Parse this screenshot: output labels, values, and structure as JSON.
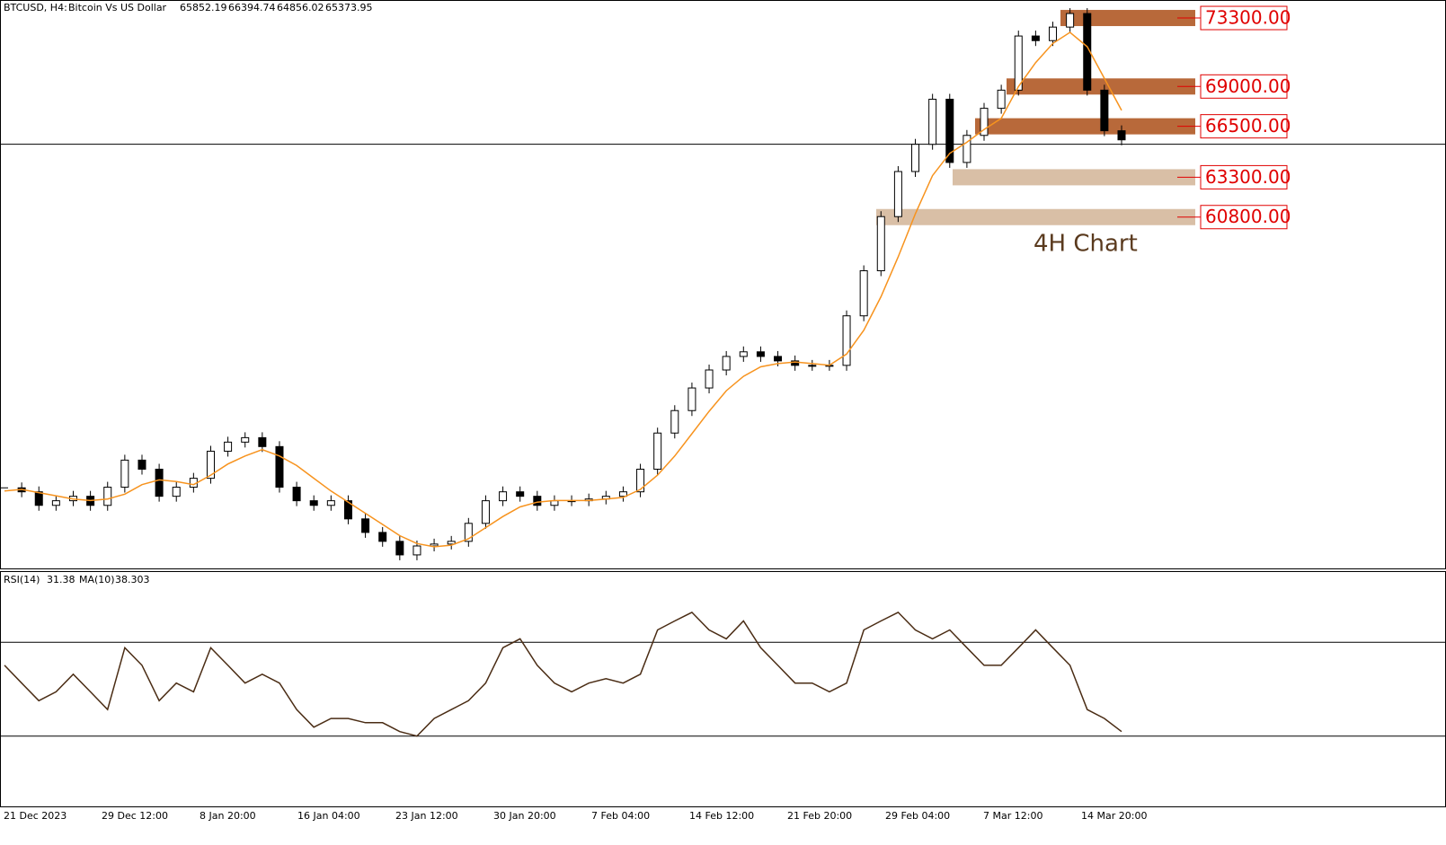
{
  "chart_data": {
    "type": "candlestick",
    "symbol": "BTCUSD, H4:",
    "description": "Bitcoin Vs US Dollar",
    "ohlc": [
      65852.19,
      66394.74,
      64856.02,
      65373.95
    ],
    "annotation": "4H Chart",
    "ylim": [
      38740,
      74430
    ],
    "close": [
      43800,
      43550,
      42700,
      42990,
      43270,
      42700,
      43840,
      45540,
      44970,
      43270,
      43840,
      44400,
      46100,
      46670,
      46950,
      46390,
      43840,
      42990,
      42700,
      42990,
      41850,
      41000,
      40440,
      39590,
      40150,
      40270,
      40440,
      41570,
      42990,
      43550,
      43270,
      42700,
      42990,
      42990,
      43100,
      43270,
      43550,
      44970,
      47240,
      48650,
      50070,
      51200,
      52050,
      52340,
      52050,
      51770,
      51490,
      51490,
      51490,
      54600,
      57430,
      60830,
      63660,
      65370,
      68200,
      64230,
      65930,
      67630,
      68770,
      72170,
      71880,
      72730,
      73580,
      68770,
      66220,
      65650
    ],
    "ma": [
      43600,
      43700,
      43500,
      43300,
      43100,
      43000,
      43100,
      43400,
      44000,
      44300,
      44200,
      44000,
      44600,
      45300,
      45800,
      46200,
      45800,
      45200,
      44400,
      43600,
      42900,
      42200,
      41500,
      40800,
      40300,
      40100,
      40200,
      40600,
      41300,
      42000,
      42600,
      42900,
      43000,
      43000,
      43000,
      43100,
      43200,
      43700,
      44600,
      45800,
      47200,
      48600,
      49900,
      50800,
      51400,
      51600,
      51700,
      51600,
      51500,
      52200,
      53700,
      55800,
      58300,
      61000,
      63400,
      64800,
      65500,
      66300,
      67000,
      69000,
      70500,
      71700,
      72400,
      71500,
      69500,
      67500
    ],
    "ma_color": "#f7931e",
    "levels": [
      {
        "value": 73300,
        "label": "73300.00",
        "color": "#b8693a"
      },
      {
        "value": 69000,
        "label": "69000.00",
        "color": "#b8693a"
      },
      {
        "value": 66500,
        "label": "66500.00",
        "color": "#b8693a"
      },
      {
        "value": 63300,
        "label": "63300.00",
        "color": "#d9bfa6"
      },
      {
        "value": 60800,
        "label": "60800.00",
        "color": "#d9bfa6"
      }
    ],
    "x_labels": [
      "21 Dec 2023",
      "29 Dec 12:00",
      "8 Jan 20:00",
      "16 Jan 04:00",
      "23 Jan 12:00",
      "30 Jan 20:00",
      "7 Feb 04:00",
      "14 Feb 12:00",
      "21 Feb 20:00",
      "29 Feb 04:00",
      "7 Mar 12:00",
      "14 Mar 20:00"
    ],
    "rsi": {
      "label": "RSI(14)",
      "value": 31.38,
      "ma_label": "MA(10)",
      "ma_value": 38.303,
      "ylim": [
        0,
        100
      ],
      "levels": [
        70,
        30
      ],
      "color": "#4a2c14",
      "values": [
        60.2,
        52.6,
        45.1,
        48.9,
        56.4,
        48.9,
        41.3,
        67.7,
        60.2,
        45.1,
        52.6,
        48.9,
        67.7,
        60.2,
        52.6,
        56.4,
        52.6,
        41.3,
        33.8,
        37.5,
        37.5,
        35.7,
        35.7,
        31.9,
        30.0,
        37.5,
        41.3,
        45.1,
        52.6,
        67.7,
        71.5,
        60.2,
        52.6,
        48.9,
        52.6,
        54.5,
        52.6,
        56.4,
        75.3,
        79.1,
        82.8,
        75.3,
        71.5,
        79.1,
        67.7,
        60.2,
        52.6,
        52.6,
        48.9,
        52.6,
        75.3,
        79.1,
        82.8,
        75.3,
        71.5,
        75.3,
        67.7,
        60.2,
        60.2,
        67.7,
        75.3,
        67.7,
        60.2,
        41.3,
        37.5,
        31.9
      ]
    }
  }
}
